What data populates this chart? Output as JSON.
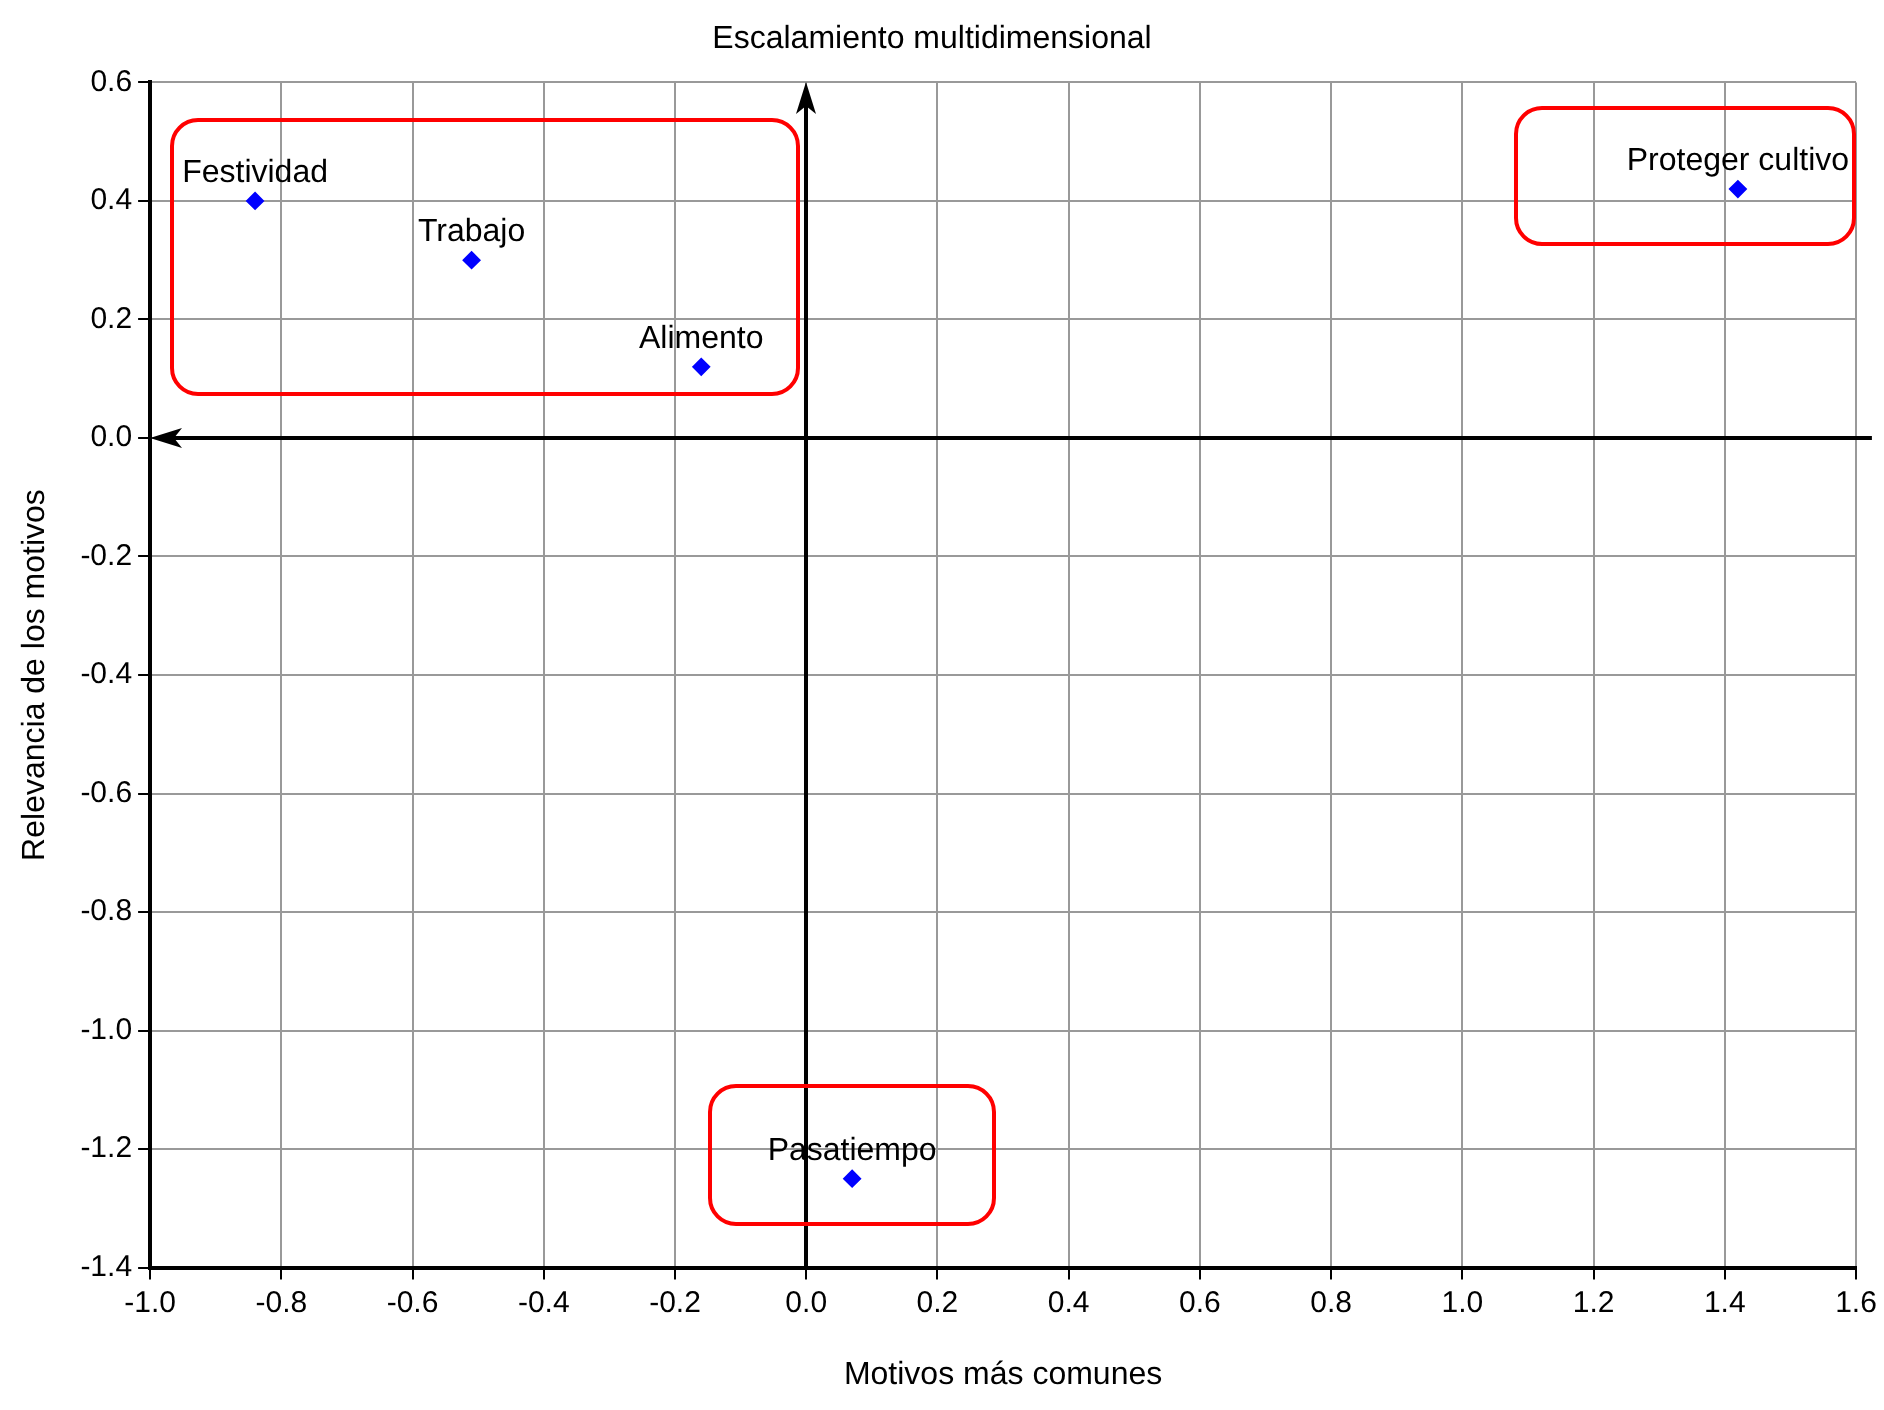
{
  "chart_data": {
    "type": "scatter",
    "title": "Escalamiento multidimensional",
    "xlabel": "Motivos más comunes",
    "ylabel": "Relevancia de los motivos",
    "x": [
      -0.84,
      -0.51,
      -0.16,
      1.42,
      0.07
    ],
    "series": [
      {
        "color": "#0000ff",
        "values": [
          0.4,
          0.3,
          0.12,
          0.42,
          -1.25
        ]
      }
    ],
    "annotations": [
      {
        "text": "Festividad",
        "x": -0.84,
        "y": 0.4
      },
      {
        "text": "Trabajo",
        "x": -0.51,
        "y": 0.3
      },
      {
        "text": "Alimento",
        "x": -0.16,
        "y": 0.12
      },
      {
        "text": "Proteger cultivo",
        "x": 1.42,
        "y": 0.42
      },
      {
        "text": "Pasatiempo",
        "x": 0.07,
        "y": -1.25
      }
    ],
    "xlim": [
      -1,
      1.6
    ],
    "xticks": [
      {
        "value": -1,
        "label": "-1.0"
      },
      {
        "value": -0.8,
        "label": "-0.8"
      },
      {
        "value": -0.6,
        "label": "-0.6"
      },
      {
        "value": -0.4,
        "label": "-0.4"
      },
      {
        "value": -0.2,
        "label": "-0.2"
      },
      {
        "value": 0,
        "label": "0.0"
      },
      {
        "value": 0.2,
        "label": "0.2"
      },
      {
        "value": 0.4,
        "label": "0.4"
      },
      {
        "value": 0.6,
        "label": "0.6"
      },
      {
        "value": 0.8,
        "label": "0.8"
      },
      {
        "value": 1,
        "label": "1.0"
      },
      {
        "value": 1.2,
        "label": "1.2"
      },
      {
        "value": 1.4,
        "label": "1.4"
      },
      {
        "value": 1.6,
        "label": "1.6"
      }
    ],
    "ylim": [
      -1.4,
      0.6
    ],
    "yticks": [
      {
        "value": -1.4,
        "label": "-1.4"
      },
      {
        "value": -1.2,
        "label": "-1.2"
      },
      {
        "value": -1,
        "label": "-1.0"
      },
      {
        "value": -0.8,
        "label": "-0.8"
      },
      {
        "value": -0.6,
        "label": "-0.6"
      },
      {
        "value": -0.4,
        "label": "-0.4"
      },
      {
        "value": -0.2,
        "label": "-0.2"
      },
      {
        "value": 0,
        "label": "0.0"
      },
      {
        "value": 0.2,
        "label": "0.2"
      },
      {
        "value": 0.4,
        "label": "0.4"
      },
      {
        "value": 0.6,
        "label": "0.6"
      }
    ],
    "grid": true,
    "marker": "diamond",
    "legend": false
  }
}
